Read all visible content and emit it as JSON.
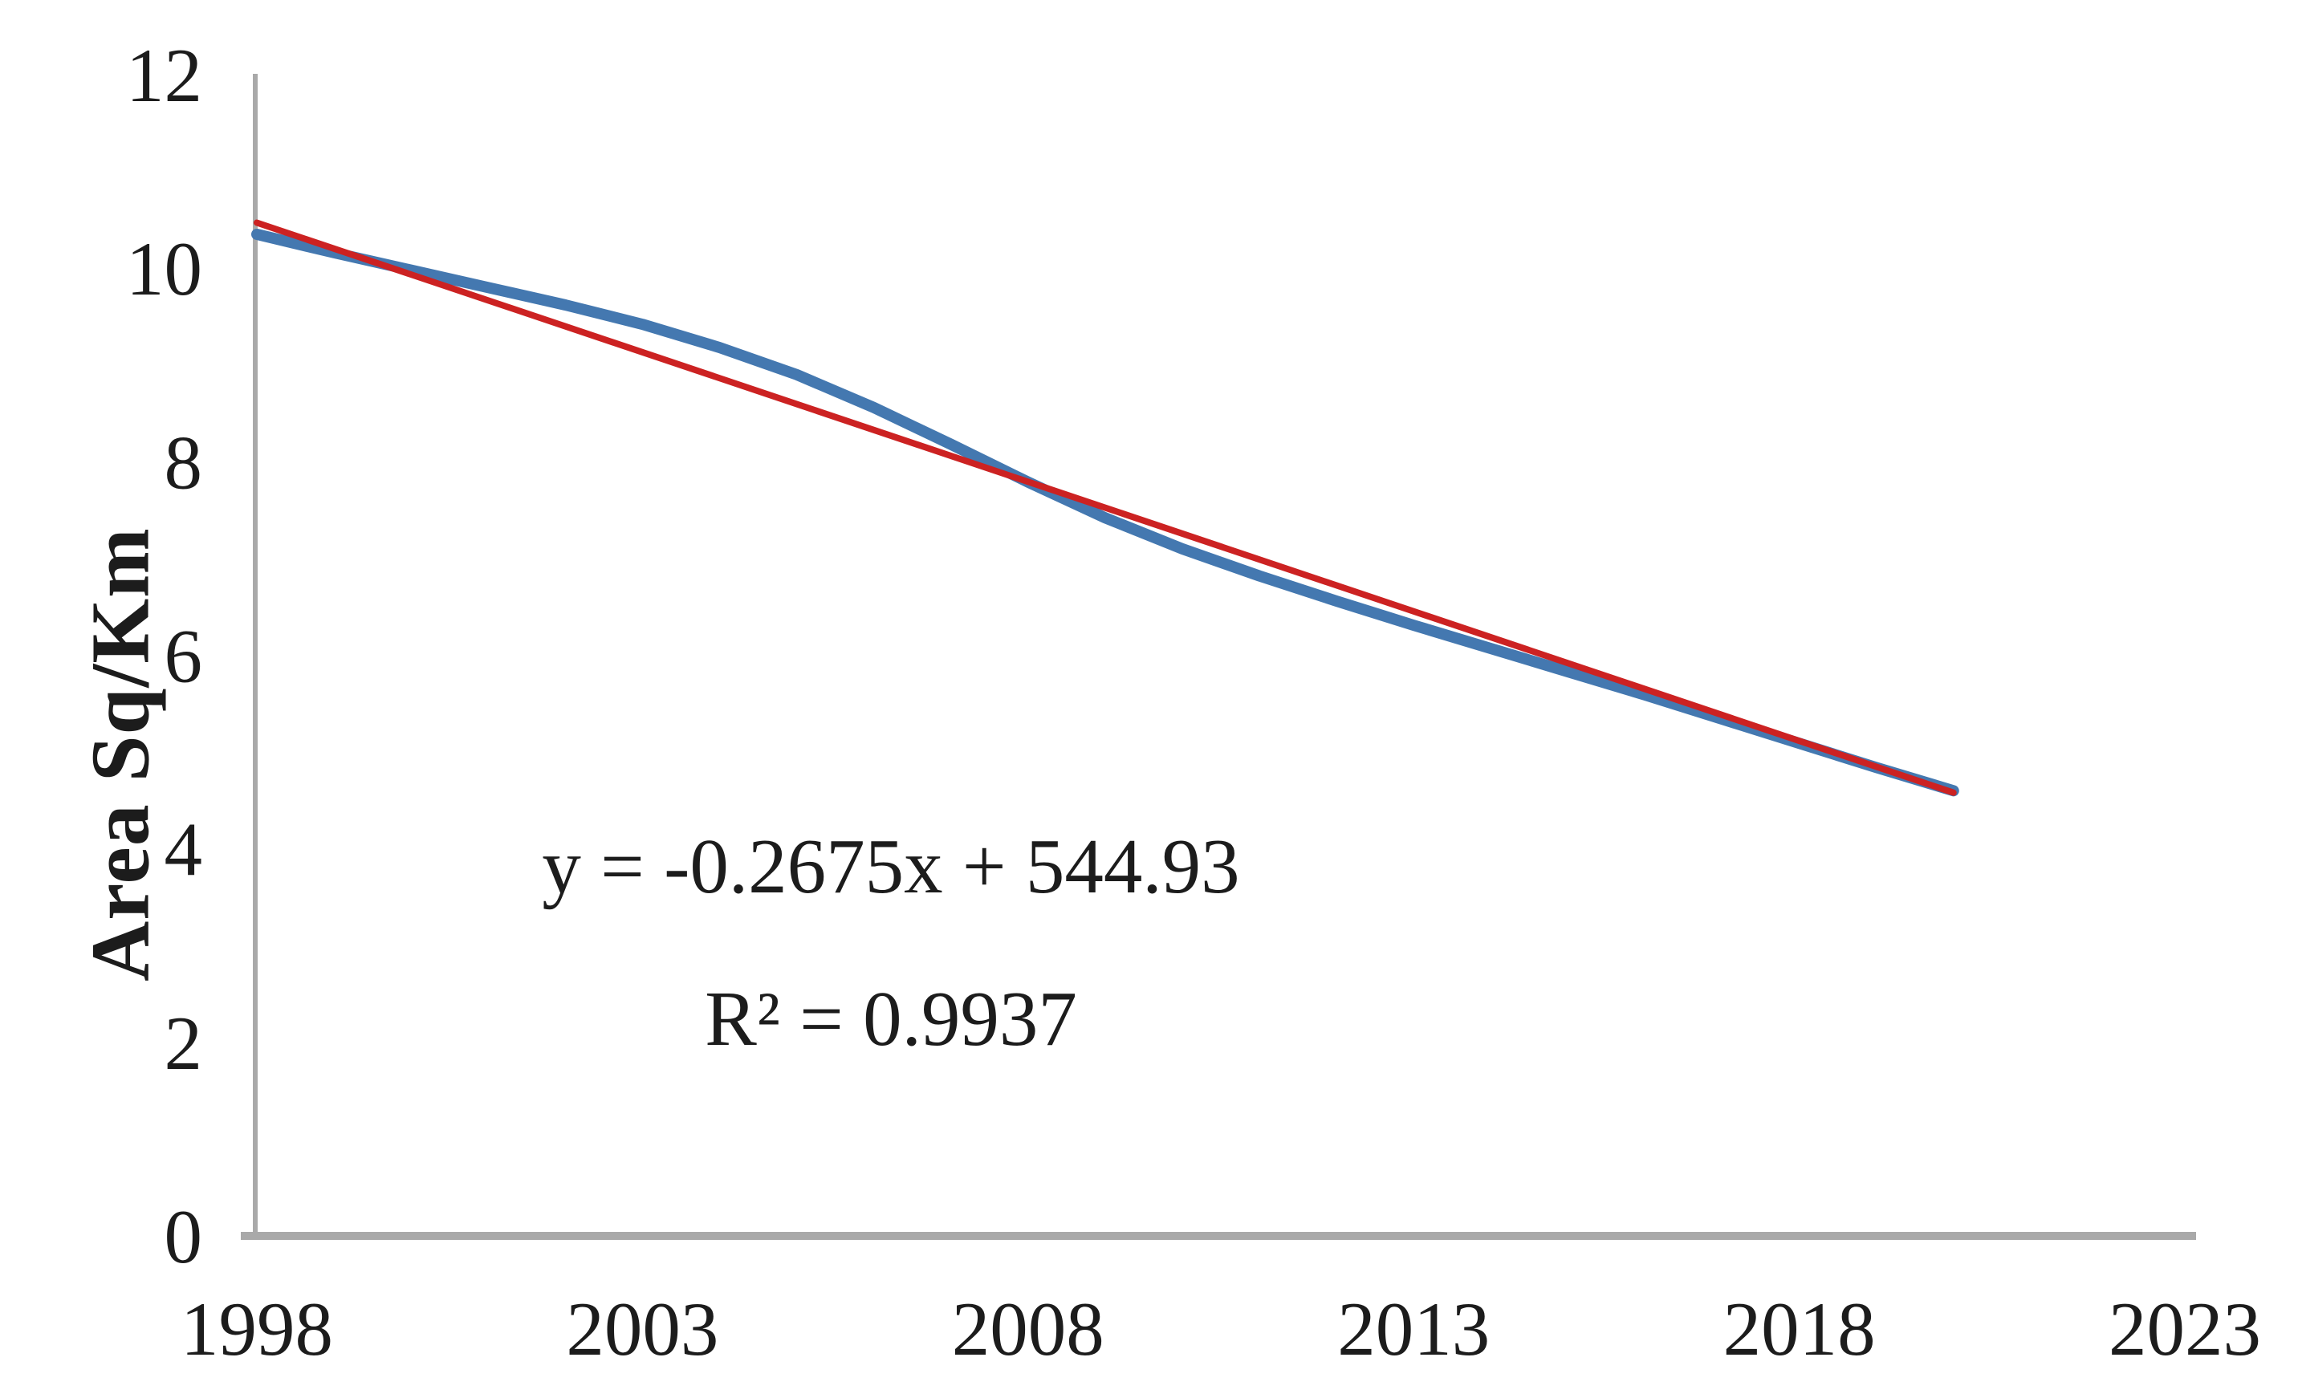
{
  "chart_data": {
    "type": "line",
    "title": "",
    "xlabel": "",
    "ylabel": "Area Sq/Km",
    "xlim": [
      1998,
      2023
    ],
    "ylim": [
      0,
      12
    ],
    "x_ticks": [
      1998,
      2003,
      2008,
      2013,
      2018,
      2023
    ],
    "y_ticks": [
      0,
      2,
      4,
      6,
      8,
      10,
      12
    ],
    "grid": false,
    "legend_position": "none",
    "background_color": "#ffffff",
    "axis_color": "#a9a9a9",
    "text_color": "#1c1c1c",
    "annotation": {
      "equation": "y = -0.2675x + 544.93",
      "r_squared": "R² = 0.9937"
    },
    "series": [
      {
        "name": "Area Sq/Km observed",
        "kind": "data-curve",
        "color": "#4478b0",
        "stroke_width": 14,
        "x": [
          1998,
          1999,
          2000,
          2001,
          2002,
          2003,
          2004,
          2005,
          2006,
          2007,
          2008,
          2009,
          2010,
          2011,
          2012,
          2013,
          2014,
          2015,
          2016,
          2017,
          2018,
          2019,
          2020
        ],
        "values": [
          10.35,
          10.16,
          9.98,
          9.8,
          9.62,
          9.42,
          9.18,
          8.9,
          8.56,
          8.18,
          7.79,
          7.42,
          7.1,
          6.82,
          6.56,
          6.31,
          6.07,
          5.83,
          5.59,
          5.34,
          5.09,
          4.84,
          4.6
        ]
      },
      {
        "name": "Linear trendline",
        "kind": "trendline",
        "color": "#cc2222",
        "stroke_width": 8,
        "x": [
          1998,
          2020
        ],
        "values": [
          10.47,
          4.58
        ]
      }
    ]
  }
}
